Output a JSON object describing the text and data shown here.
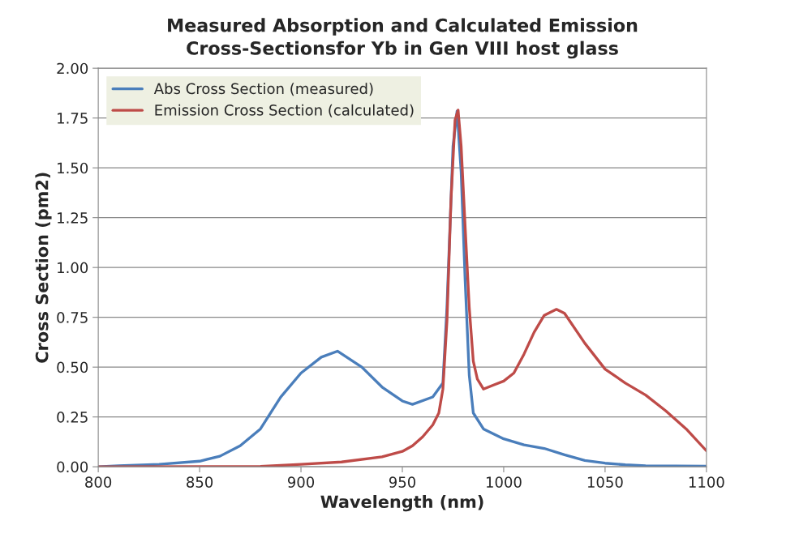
{
  "chart_data": {
    "type": "line",
    "title": "Measured Absorption and Calculated Emission\nCross-Sectionsfor Yb in Gen VIII host glass",
    "xlabel": "Wavelength (nm)",
    "ylabel": "Cross Section (pm2)",
    "xlim": [
      800,
      1100
    ],
    "xticks": [
      800,
      850,
      900,
      950,
      1000,
      1050,
      1100
    ],
    "ylim": [
      0,
      2
    ],
    "yticks": [
      {
        "value": 0,
        "label": "0.00"
      },
      {
        "value": 0.25,
        "label": "0.25"
      },
      {
        "value": 0.5,
        "label": "0.50"
      },
      {
        "value": 0.75,
        "label": "0.75"
      },
      {
        "value": 1,
        "label": "1.00"
      },
      {
        "value": 1.25,
        "label": "1.25"
      },
      {
        "value": 1.5,
        "label": "1.50"
      },
      {
        "value": 1.75,
        "label": "1.75"
      },
      {
        "value": 2,
        "label": "2.00"
      }
    ],
    "grid": "y",
    "legend": "top left",
    "marker": "none",
    "line_style": "solid",
    "series": [
      {
        "name": "Abs Cross Section (measured)",
        "color": "#4a7ebb",
        "x": [
          800,
          810,
          830,
          850,
          860,
          870,
          880,
          890,
          900,
          910,
          918,
          930,
          940,
          950,
          955,
          965,
          970,
          972,
          975,
          977,
          979,
          981,
          983,
          985,
          990,
          1000,
          1010,
          1020,
          1030,
          1040,
          1050,
          1060,
          1070,
          1100
        ],
        "values": [
          0.0,
          0.005,
          0.012,
          0.028,
          0.053,
          0.105,
          0.19,
          0.35,
          0.47,
          0.55,
          0.58,
          0.5,
          0.4,
          0.33,
          0.313,
          0.35,
          0.42,
          0.8,
          1.61,
          1.785,
          1.48,
          0.93,
          0.46,
          0.27,
          0.19,
          0.14,
          0.11,
          0.092,
          0.06,
          0.032,
          0.018,
          0.01,
          0.005,
          0.003
        ]
      },
      {
        "name": "Emission Cross Section (calculated)",
        "color": "#be4b48",
        "x": [
          800,
          880,
          900,
          920,
          940,
          950,
          955,
          960,
          965,
          968,
          970,
          972,
          974,
          976,
          977.5,
          979,
          981,
          983,
          985,
          987,
          990,
          995,
          1000,
          1005,
          1010,
          1015,
          1020,
          1026,
          1030,
          1040,
          1050,
          1060,
          1070,
          1080,
          1090,
          1100
        ],
        "values": [
          0.0,
          0.002,
          0.012,
          0.024,
          0.05,
          0.077,
          0.105,
          0.15,
          0.21,
          0.27,
          0.39,
          0.73,
          1.34,
          1.74,
          1.79,
          1.61,
          1.2,
          0.8,
          0.53,
          0.44,
          0.39,
          0.41,
          0.43,
          0.47,
          0.565,
          0.675,
          0.76,
          0.79,
          0.77,
          0.62,
          0.49,
          0.42,
          0.36,
          0.28,
          0.19,
          0.08
        ]
      }
    ]
  }
}
